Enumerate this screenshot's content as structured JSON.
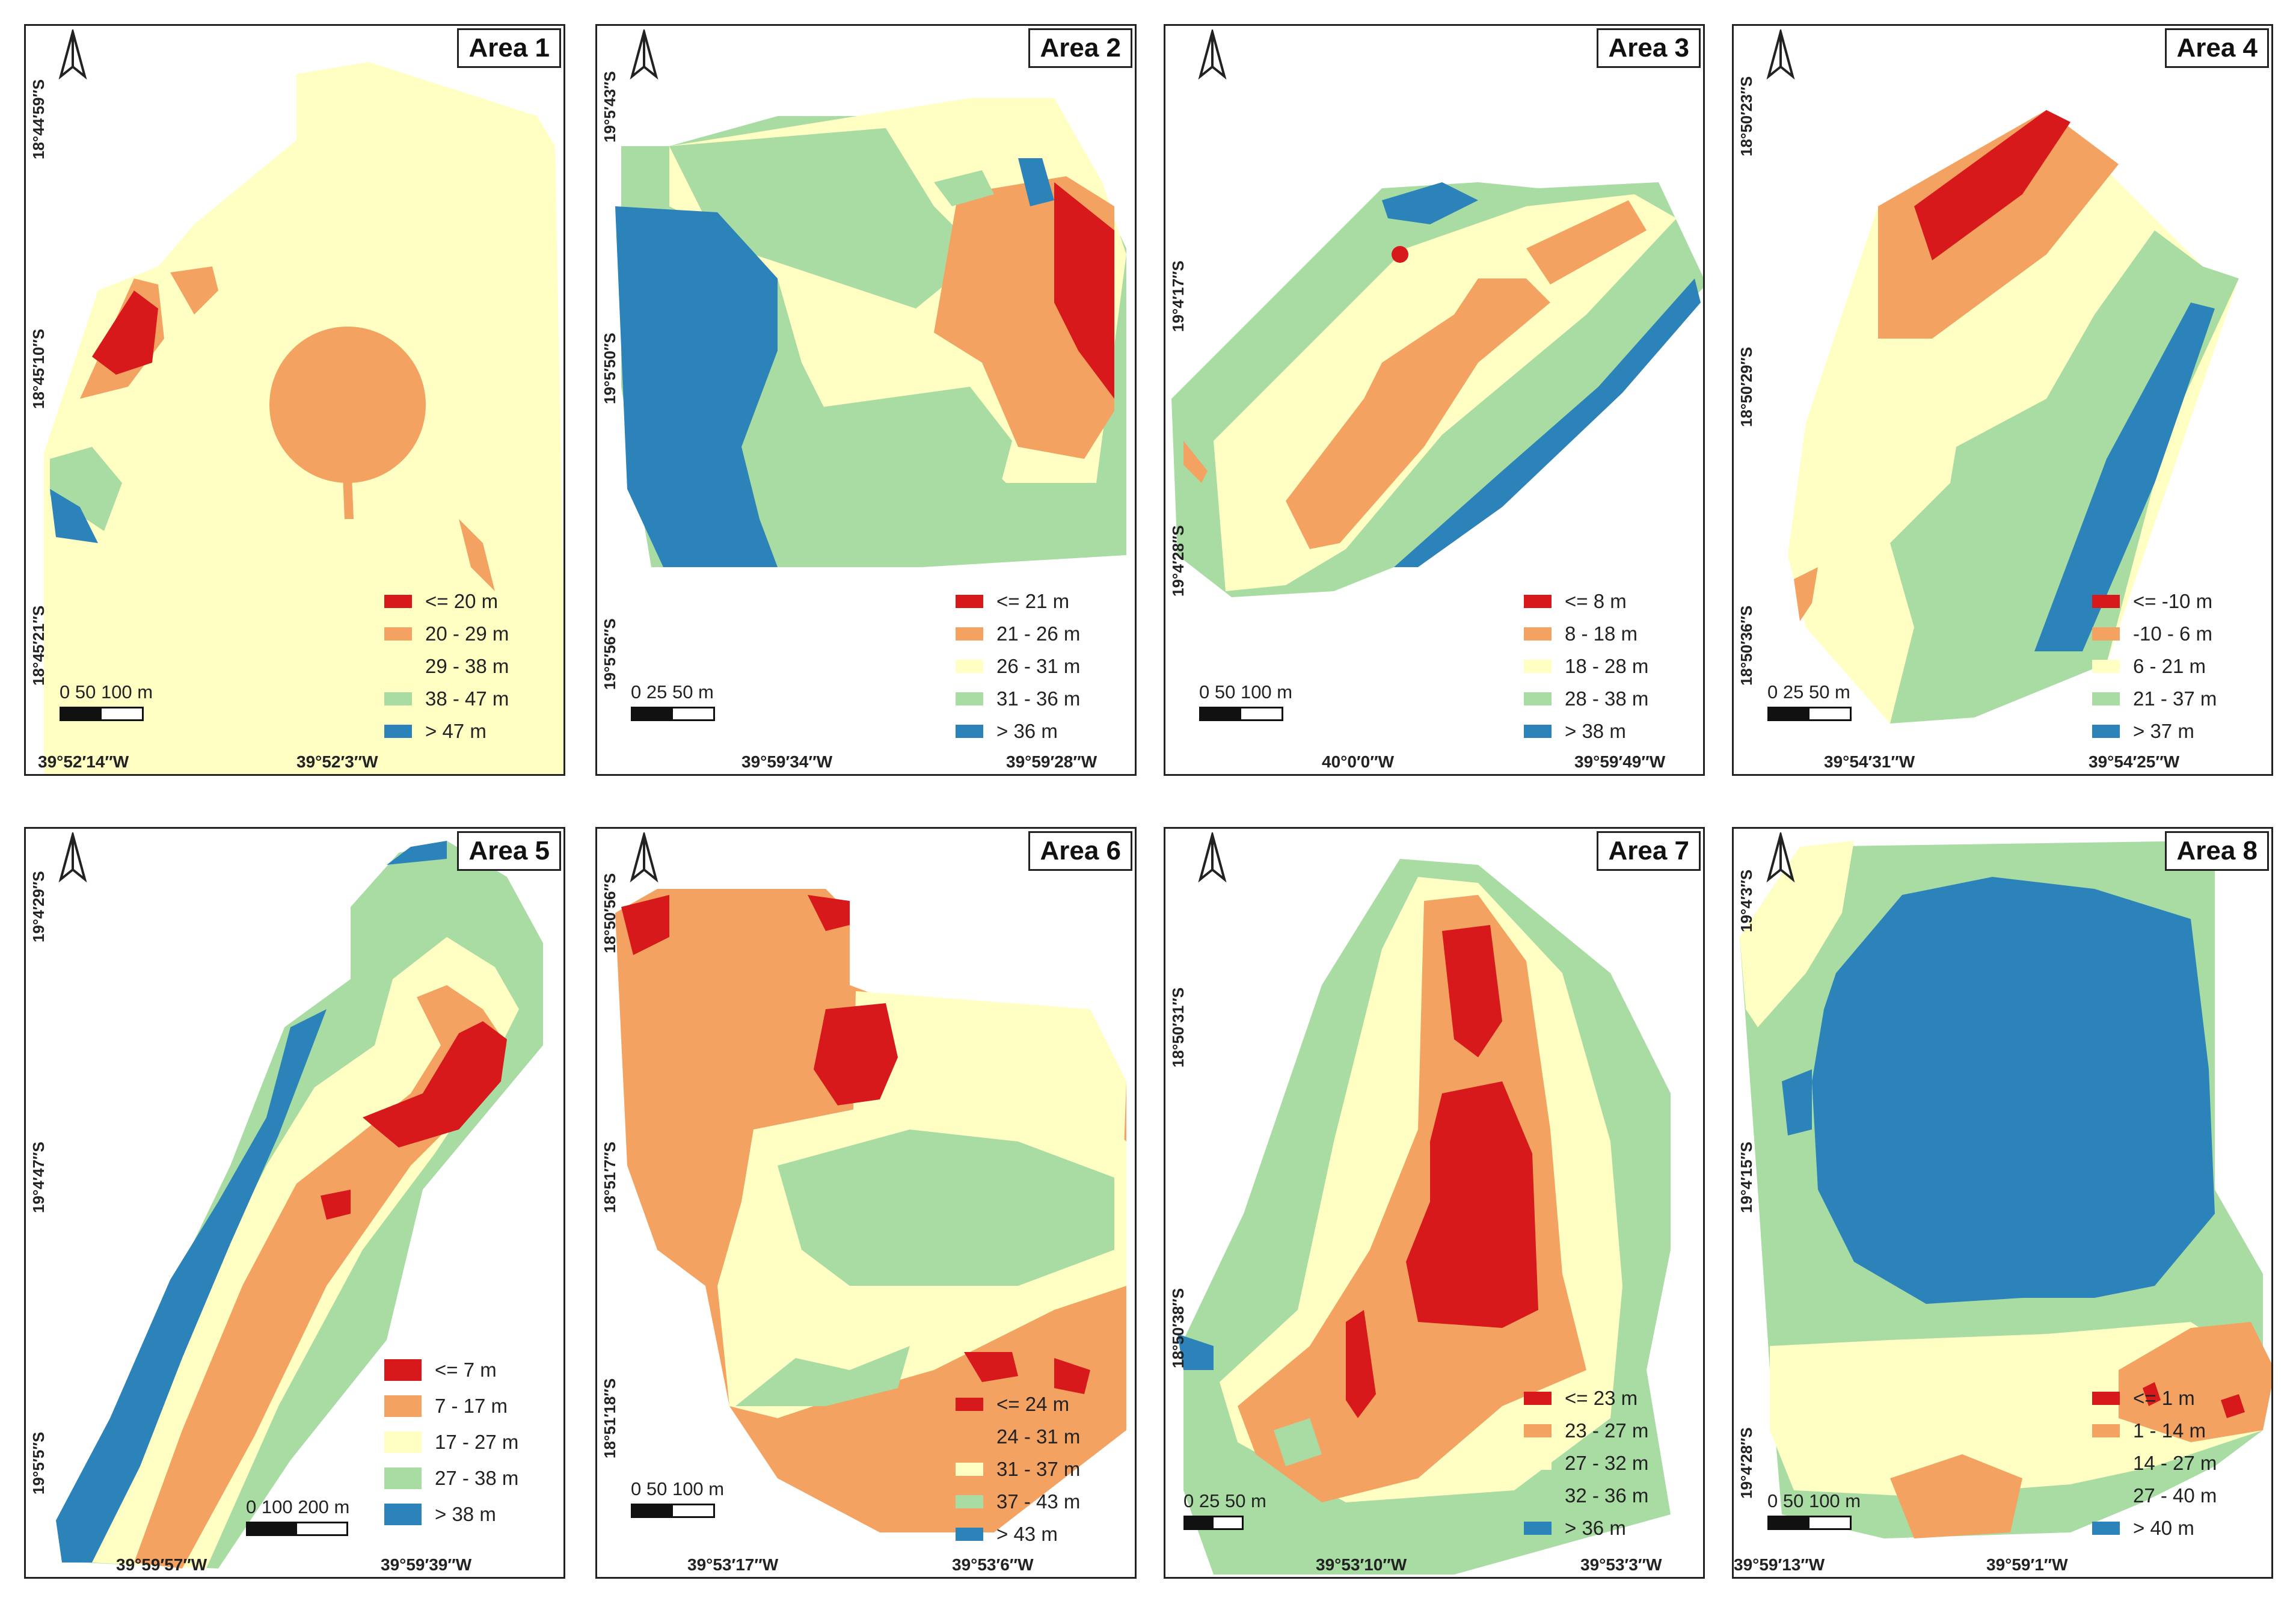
{
  "colors": {
    "c1": "#d7191c",
    "c2": "#f4a261",
    "c3": "#ffffc4",
    "c4": "#a8dca3",
    "c5": "#2b83ba"
  },
  "north_icon": "north-arrow-icon",
  "areas": [
    {
      "title": "Area 1",
      "lat_labels": [
        "18°44′59″S",
        "18°45′10″S",
        "18°45′21″S"
      ],
      "lon_labels": [
        "39°52′14″W",
        "39°52′3″W"
      ],
      "scale_labels": "0   50  100 m",
      "legend": [
        "<= 20 m",
        "20 - 29 m",
        "29 - 38 m",
        "38 - 47 m",
        "> 47 m"
      ]
    },
    {
      "title": "Area 2",
      "lat_labels": [
        "19°5′43″S",
        "19°5′50″S",
        "19°5′56″S"
      ],
      "lon_labels": [
        "39°59′34″W",
        "39°59′28″W"
      ],
      "scale_labels": "0   25  50 m",
      "legend": [
        "<= 21 m",
        "21 - 26 m",
        "26 - 31 m",
        "31 - 36 m",
        "> 36 m"
      ]
    },
    {
      "title": "Area 3",
      "lat_labels": [
        "19°4′17″S",
        "19°4′28″S"
      ],
      "lon_labels": [
        "40°0′0″W",
        "39°59′49″W"
      ],
      "scale_labels": "0   50  100 m",
      "legend": [
        "<= 8 m",
        "8 - 18 m",
        "18 - 28 m",
        "28 - 38 m",
        "> 38 m"
      ]
    },
    {
      "title": "Area 4",
      "lat_labels": [
        "18°50′23″S",
        "18°50′29″S",
        "18°50′36″S"
      ],
      "lon_labels": [
        "39°54′31″W",
        "39°54′25″W"
      ],
      "scale_labels": "0   25  50 m",
      "legend": [
        "<= -10 m",
        "-10 - 6 m",
        "6 - 21 m",
        "21 - 37 m",
        "> 37 m"
      ]
    },
    {
      "title": "Area 5",
      "lat_labels": [
        "19°4′29″S",
        "19°4′47″S",
        "19°5′5″S"
      ],
      "lon_labels": [
        "39°59′57″W",
        "39°59′39″W"
      ],
      "scale_labels": "0   100  200 m",
      "legend": [
        "<= 7 m",
        "7 - 17 m",
        "17 - 27 m",
        "27 - 38 m",
        "> 38 m"
      ]
    },
    {
      "title": "Area 6",
      "lat_labels": [
        "18°50′56″S",
        "18°51′7″S",
        "18°51′18″S"
      ],
      "lon_labels": [
        "39°53′17″W",
        "39°53′6″W"
      ],
      "scale_labels": "0   50  100 m",
      "legend": [
        "<= 24 m",
        "24 - 31 m",
        "31 - 37 m",
        "37 - 43 m",
        "> 43 m"
      ]
    },
    {
      "title": "Area 7",
      "lat_labels": [
        "18°50′31″S",
        "18°50′38″S"
      ],
      "lon_labels": [
        "39°53′10″W",
        "39°53′3″W"
      ],
      "scale_labels": "0  25 50 m",
      "legend": [
        "<= 23 m",
        "23 - 27 m",
        "27 - 32 m",
        "32 - 36 m",
        "> 36 m"
      ]
    },
    {
      "title": "Area 8",
      "lat_labels": [
        "19°4′3″S",
        "19°4′15″S",
        "19°4′28″S"
      ],
      "lon_labels": [
        "39°59′13″W",
        "39°59′1″W"
      ],
      "scale_labels": "0  50 100 m",
      "legend": [
        "<= 1 m",
        "1 - 14 m",
        "14 - 27 m",
        "27 - 40 m",
        "> 40 m"
      ]
    }
  ]
}
